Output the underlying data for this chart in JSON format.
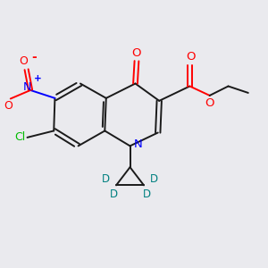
{
  "background_color": "#eaeaee",
  "bond_color": "#1a1a1a",
  "nitrogen_color": "#0000ff",
  "oxygen_color": "#ff0000",
  "chlorine_color": "#00bb00",
  "deuterium_color": "#008080",
  "figsize": [
    3.0,
    3.0
  ],
  "dpi": 100,
  "xlim": [
    0,
    10
  ],
  "ylim": [
    0,
    10
  ]
}
